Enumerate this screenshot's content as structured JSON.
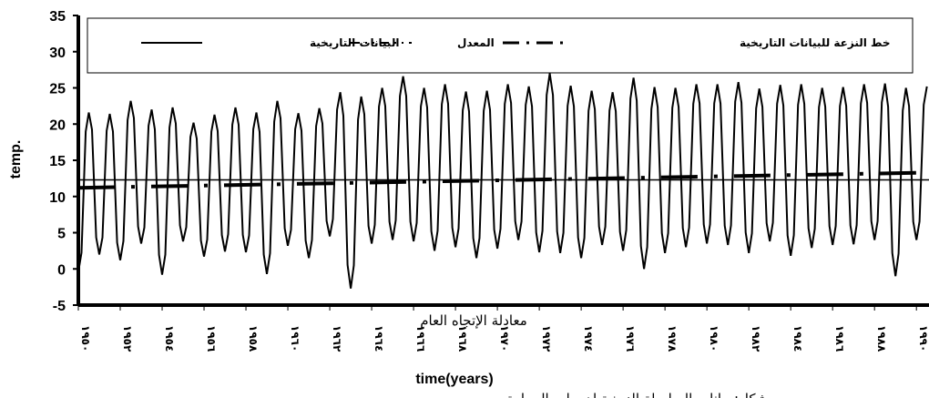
{
  "chart_data": {
    "type": "line",
    "title": "",
    "xlabel": "time(years)",
    "ylabel": "temp.",
    "ylim": [
      -5,
      35
    ],
    "yticks": [
      -5,
      0,
      5,
      10,
      15,
      20,
      25,
      30,
      35
    ],
    "xticks": [
      "١٩٥٠",
      "١٩٥٢",
      "١٩٥٤",
      "١٩٥٦",
      "١٩٥٨",
      "١٩٦٠",
      "١٩٦٢",
      "١٩٦٤",
      "١٩٦٦",
      "١٩٦٨",
      "١٩٧٠",
      "١٩٧٢",
      "١٩٧٤",
      "١٩٧٦",
      "١٩٧٨",
      "١٩٨٠",
      "١٩٨٢",
      "١٩٨٤",
      "١٩٨٦",
      "١٩٨٨",
      "١٩٩٠"
    ],
    "x_start_year": 1950,
    "x_end_year": 1990.6,
    "grid": false,
    "legend_position": "top",
    "annotation": "معادلة الإتجاه العام",
    "series": [
      {
        "name": "البيانات التاريخية",
        "style": "solid",
        "color": "#000000",
        "cycle_peaks": [
          21.6,
          21.4,
          23.2,
          22.0,
          22.3,
          20.2,
          21.3,
          22.3,
          21.6,
          23.2,
          21.5,
          22.2,
          24.4,
          23.8,
          25.0,
          26.6,
          25.0,
          25.5,
          24.5,
          24.6,
          25.5,
          25.2,
          27.0,
          25.3,
          24.6,
          24.4,
          26.4,
          25.1,
          25.0,
          25.5,
          25.5,
          25.8,
          24.9,
          25.4,
          25.5,
          25.0,
          25.1,
          25.5,
          25.6,
          25.0,
          25.2
        ],
        "cycle_troughs": [
          -0.4,
          2.0,
          1.2,
          3.5,
          -0.8,
          3.8,
          1.7,
          2.4,
          2.3,
          -0.7,
          3.2,
          1.5,
          4.5,
          -2.7,
          3.5,
          4.0,
          3.8,
          2.5,
          3.0,
          1.5,
          2.8,
          4.0,
          2.3,
          2.2,
          1.5,
          3.3,
          2.5,
          0.0,
          2.2,
          3.0,
          3.5,
          3.3,
          2.2,
          3.8,
          1.8,
          2.9,
          3.3,
          3.4,
          4.0,
          -1.0,
          4.0
        ]
      },
      {
        "name": "المعدل",
        "style": "dash-dot-dot",
        "color": "#000000",
        "values": [
          12.3
        ]
      },
      {
        "name": "خط النزعة للبيانات التاريخية",
        "style": "dash-dot",
        "color": "#000000",
        "start": 11.2,
        "end": 13.3
      }
    ]
  },
  "caption_partial": "شكل: بيانات السلسلة الزمنية لدرجات الحرارة"
}
